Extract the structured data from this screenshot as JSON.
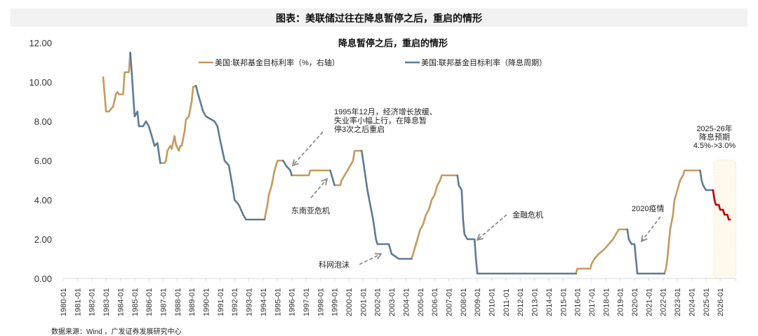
{
  "header": {
    "title": "图表：美联储过往在降息暂停之后，重启的情形"
  },
  "source": "数据来源：Wind ，广发证券发展研究中心",
  "colors": {
    "hike": "#C49A5E",
    "cut": "#5E7B94",
    "forecast": "#C00000",
    "forecast_band": "#FFF8EC",
    "arrow": "#8C8C8C",
    "axis": "#D9D9D9"
  },
  "chart_data": {
    "type": "line",
    "title": "降息暂停之后，重启的情形",
    "xlabel": "",
    "ylabel": "",
    "ylim": [
      0,
      12
    ],
    "yticks": [
      "0.00",
      "2.00",
      "4.00",
      "6.00",
      "8.00",
      "10.00",
      "12.00"
    ],
    "xticks": [
      "1980-01",
      "1981-01",
      "1982-01",
      "1983-01",
      "1984-01",
      "1985-01",
      "1986-01",
      "1987-01",
      "1988-01",
      "1989-01",
      "1990-01",
      "1991-01",
      "1992-01",
      "1993-01",
      "1994-01",
      "1995-01",
      "1996-01",
      "1997-01",
      "1998-01",
      "1999-01",
      "2000-01",
      "2001-01",
      "2002-01",
      "2003-01",
      "2004-01",
      "2005-01",
      "2006-01",
      "2007-01",
      "2008-01",
      "2009-01",
      "2010-01",
      "2011-01",
      "2012-01",
      "2013-01",
      "2014-01",
      "2015-01",
      "2016-01",
      "2017-01",
      "2018-01",
      "2019-01",
      "2020-01",
      "2021-01",
      "2022-01",
      "2023-01",
      "2024-01",
      "2025-01",
      "2026-01"
    ],
    "grid": false,
    "legend_position": "top",
    "legend": [
      {
        "name": "美国:联邦基金目标利率（%，右轴）",
        "color": "#C49A5E"
      },
      {
        "name": "美国:联邦基金目标利率（降息周期）",
        "color": "#5E7B94"
      }
    ],
    "series": [
      {
        "name": "美国:联邦基金目标利率（%，右轴）",
        "role": "hike",
        "segments": [
          [
            [
              1982.8,
              10.25
            ],
            [
              1983.0,
              8.5
            ],
            [
              1983.2,
              8.5
            ],
            [
              1983.5,
              8.75
            ],
            [
              1983.7,
              9.4
            ],
            [
              1983.8,
              9.5
            ],
            [
              1983.9,
              9.375
            ],
            [
              1984.2,
              9.375
            ],
            [
              1984.3,
              10.5
            ],
            [
              1984.6,
              10.5
            ],
            [
              1984.7,
              11.5
            ]
          ],
          [
            [
              1986.8,
              5.875
            ],
            [
              1987.1,
              5.875
            ],
            [
              1987.2,
              6.0
            ],
            [
              1987.3,
              6.5
            ],
            [
              1987.5,
              6.75
            ],
            [
              1987.6,
              6.6
            ],
            [
              1987.8,
              7.25
            ],
            [
              1987.9,
              6.8
            ],
            [
              1988.1,
              6.5
            ],
            [
              1988.2,
              6.75
            ],
            [
              1988.3,
              6.75
            ],
            [
              1988.5,
              7.5
            ],
            [
              1988.6,
              8.1
            ],
            [
              1988.8,
              8.25
            ],
            [
              1989.0,
              9.0
            ],
            [
              1989.1,
              9.75
            ],
            [
              1989.3,
              9.81
            ]
          ],
          [
            [
              1994.1,
              3.0
            ],
            [
              1994.3,
              3.75
            ],
            [
              1994.4,
              4.25
            ],
            [
              1994.6,
              4.75
            ],
            [
              1994.8,
              5.5
            ],
            [
              1995.0,
              6.0
            ],
            [
              1995.4,
              6.0
            ]
          ],
          [
            [
              1996.0,
              5.25
            ],
            [
              1997.2,
              5.25
            ],
            [
              1997.3,
              5.5
            ],
            [
              1998.7,
              5.5
            ]
          ],
          [
            [
              1999.0,
              4.75
            ],
            [
              1999.4,
              4.75
            ],
            [
              1999.5,
              5.0
            ],
            [
              1999.7,
              5.25
            ],
            [
              1999.9,
              5.5
            ],
            [
              2000.1,
              5.75
            ],
            [
              2000.3,
              6.0
            ],
            [
              2000.4,
              6.5
            ],
            [
              2000.9,
              6.5
            ]
          ],
          [
            [
              2004.4,
              1.0
            ],
            [
              2004.6,
              1.5
            ],
            [
              2004.8,
              2.0
            ],
            [
              2005.0,
              2.5
            ],
            [
              2005.2,
              2.75
            ],
            [
              2005.4,
              3.25
            ],
            [
              2005.6,
              3.5
            ],
            [
              2005.8,
              4.0
            ],
            [
              2006.0,
              4.25
            ],
            [
              2006.2,
              4.75
            ],
            [
              2006.4,
              5.0
            ],
            [
              2006.5,
              5.25
            ],
            [
              2007.6,
              5.25
            ]
          ],
          [
            [
              2015.9,
              0.25
            ],
            [
              2016.0,
              0.5
            ],
            [
              2016.9,
              0.5
            ],
            [
              2017.0,
              0.75
            ],
            [
              2017.2,
              1.0
            ],
            [
              2017.5,
              1.25
            ],
            [
              2017.9,
              1.5
            ],
            [
              2018.2,
              1.75
            ],
            [
              2018.5,
              2.0
            ],
            [
              2018.7,
              2.25
            ],
            [
              2018.9,
              2.5
            ],
            [
              2019.5,
              2.5
            ]
          ],
          [
            [
              2022.1,
              0.25
            ],
            [
              2022.2,
              0.5
            ],
            [
              2022.3,
              1.0
            ],
            [
              2022.4,
              1.75
            ],
            [
              2022.5,
              2.5
            ],
            [
              2022.7,
              3.25
            ],
            [
              2022.8,
              4.0
            ],
            [
              2023.0,
              4.5
            ],
            [
              2023.2,
              5.0
            ],
            [
              2023.4,
              5.25
            ],
            [
              2023.5,
              5.5
            ],
            [
              2024.6,
              5.5
            ]
          ]
        ]
      },
      {
        "name": "美国:联邦基金目标利率（降息周期）",
        "role": "cut",
        "segments": [
          [
            [
              1984.7,
              11.5
            ],
            [
              1984.8,
              10.5
            ],
            [
              1985.0,
              8.25
            ],
            [
              1985.2,
              8.5
            ],
            [
              1985.3,
              7.75
            ],
            [
              1985.6,
              7.75
            ],
            [
              1985.8,
              8.0
            ],
            [
              1986.0,
              7.75
            ],
            [
              1986.2,
              7.25
            ],
            [
              1986.4,
              6.75
            ],
            [
              1986.6,
              6.9
            ],
            [
              1986.8,
              5.875
            ]
          ],
          [
            [
              1989.3,
              9.81
            ],
            [
              1989.4,
              9.5
            ],
            [
              1989.6,
              9.0
            ],
            [
              1989.8,
              8.5
            ],
            [
              1990.0,
              8.25
            ],
            [
              1990.6,
              8.0
            ],
            [
              1990.8,
              7.75
            ],
            [
              1991.0,
              7.0
            ],
            [
              1991.3,
              6.0
            ],
            [
              1991.6,
              5.75
            ],
            [
              1991.9,
              4.5
            ],
            [
              1992.0,
              4.0
            ],
            [
              1992.3,
              3.75
            ],
            [
              1992.6,
              3.25
            ],
            [
              1992.8,
              3.0
            ],
            [
              1993.8,
              3.0
            ],
            [
              1994.1,
              3.0
            ]
          ],
          [
            [
              1995.4,
              6.0
            ],
            [
              1995.6,
              5.75
            ],
            [
              1995.9,
              5.5
            ],
            [
              1996.0,
              5.25
            ]
          ],
          [
            [
              1998.7,
              5.5
            ],
            [
              1998.9,
              5.0
            ],
            [
              1999.0,
              4.75
            ]
          ],
          [
            [
              2000.9,
              6.5
            ],
            [
              2001.0,
              6.0
            ],
            [
              2001.1,
              5.5
            ],
            [
              2001.3,
              4.5
            ],
            [
              2001.5,
              3.75
            ],
            [
              2001.7,
              3.0
            ],
            [
              2001.9,
              2.0
            ],
            [
              2002.0,
              1.75
            ],
            [
              2002.8,
              1.75
            ],
            [
              2003.0,
              1.25
            ],
            [
              2003.5,
              1.0
            ],
            [
              2004.4,
              1.0
            ]
          ],
          [
            [
              2007.6,
              5.25
            ],
            [
              2007.7,
              4.75
            ],
            [
              2007.9,
              4.5
            ],
            [
              2008.0,
              3.0
            ],
            [
              2008.1,
              2.25
            ],
            [
              2008.3,
              2.0
            ],
            [
              2008.8,
              2.0
            ],
            [
              2008.9,
              1.0
            ],
            [
              2009.0,
              0.25
            ],
            [
              2015.9,
              0.25
            ]
          ],
          [
            [
              2019.5,
              2.5
            ],
            [
              2019.6,
              2.0
            ],
            [
              2019.8,
              1.75
            ],
            [
              2020.0,
              1.75
            ],
            [
              2020.2,
              0.25
            ],
            [
              2022.1,
              0.25
            ]
          ],
          [
            [
              2024.6,
              5.5
            ],
            [
              2024.7,
              5.0
            ],
            [
              2024.8,
              4.75
            ],
            [
              2025.0,
              4.5
            ],
            [
              2025.5,
              4.5
            ]
          ]
        ]
      },
      {
        "name": "2025-26年降息预期",
        "role": "forecast",
        "segments": [
          [
            [
              2025.5,
              4.5
            ],
            [
              2025.6,
              4.0
            ],
            [
              2025.7,
              3.75
            ],
            [
              2025.9,
              3.75
            ],
            [
              2026.0,
              3.5
            ],
            [
              2026.2,
              3.5
            ],
            [
              2026.3,
              3.25
            ],
            [
              2026.5,
              3.25
            ],
            [
              2026.6,
              3.0
            ],
            [
              2026.7,
              3.0
            ]
          ]
        ]
      }
    ],
    "forecast_band": {
      "x_start": 2025.55,
      "x_end": 2027.1
    },
    "annotations": [
      {
        "id": "a1995",
        "text_lines": [
          "1995年12月，经济增长放缓、",
          "失业率小幅上行，在降息暂",
          "停3次之后重启"
        ],
        "arrow_to": [
          1995.9,
          5.75
        ]
      },
      {
        "id": "asia",
        "text_lines": [
          "东南亚危机"
        ],
        "arrow_to": [
          1998.5,
          5.3
        ]
      },
      {
        "id": "dotcom",
        "text_lines": [
          "科网泡沫"
        ],
        "arrow_to": [
          2002.6,
          1.4
        ]
      },
      {
        "id": "gfc",
        "text_lines": [
          "金融危机"
        ],
        "arrow_to": [
          2008.8,
          2.0
        ]
      },
      {
        "id": "covid",
        "text_lines": [
          "2020疫情"
        ],
        "arrow_to": [
          2020.3,
          1.8
        ]
      },
      {
        "id": "forecast",
        "text_lines": [
          "2025-26年",
          "降息预期",
          "4.5%->3.0%"
        ]
      }
    ]
  }
}
